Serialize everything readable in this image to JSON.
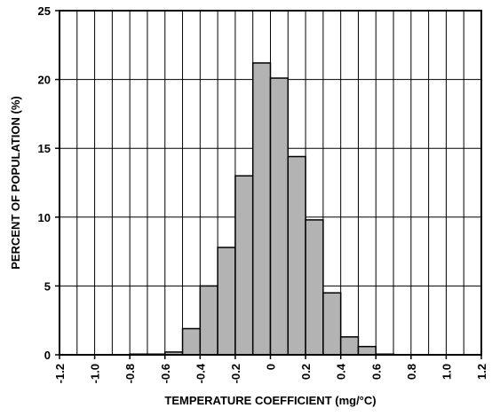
{
  "chart_data": {
    "type": "bar",
    "title": "",
    "xlabel": "TEMPERATURE COEFFICIENT (mg/°C)",
    "ylabel": "PERCENT OF POPULATION (%)",
    "xlim": [
      -1.2,
      1.2
    ],
    "ylim": [
      0,
      25
    ],
    "x_ticks": [
      -1.2,
      -1.0,
      -0.8,
      -0.6,
      -0.4,
      -0.2,
      0,
      0.2,
      0.4,
      0.6,
      0.8,
      1.0,
      1.2
    ],
    "x_tick_labels": [
      "-1.2",
      "-1.0",
      "-0.8",
      "-0.6",
      "-0.4",
      "-0.2",
      "0",
      "0.2",
      "0.4",
      "0.6",
      "0.8",
      "1.0",
      "1.2"
    ],
    "y_ticks": [
      0,
      5,
      10,
      15,
      20,
      25
    ],
    "y_tick_labels": [
      "0",
      "5",
      "10",
      "15",
      "20",
      "25"
    ],
    "bin_width": 0.1,
    "bins": [
      {
        "x": [
          -0.8,
          -0.7
        ],
        "value": 0.05
      },
      {
        "x": [
          -0.7,
          -0.6
        ],
        "value": 0.05
      },
      {
        "x": [
          -0.6,
          -0.5
        ],
        "value": 0.2
      },
      {
        "x": [
          -0.5,
          -0.4
        ],
        "value": 1.9
      },
      {
        "x": [
          -0.4,
          -0.3
        ],
        "value": 5.0
      },
      {
        "x": [
          -0.3,
          -0.2
        ],
        "value": 7.8
      },
      {
        "x": [
          -0.2,
          -0.1
        ],
        "value": 13.0
      },
      {
        "x": [
          -0.1,
          0.0
        ],
        "value": 21.2
      },
      {
        "x": [
          0.0,
          0.1
        ],
        "value": 20.1
      },
      {
        "x": [
          0.1,
          0.2
        ],
        "value": 14.4
      },
      {
        "x": [
          0.2,
          0.3
        ],
        "value": 9.8
      },
      {
        "x": [
          0.3,
          0.4
        ],
        "value": 4.5
      },
      {
        "x": [
          0.4,
          0.5
        ],
        "value": 1.3
      },
      {
        "x": [
          0.5,
          0.6
        ],
        "value": 0.6
      },
      {
        "x": [
          0.6,
          0.7
        ],
        "value": 0.05
      }
    ],
    "grid": true,
    "bar_fill": "#b3b3b3",
    "bar_stroke": "#000000"
  }
}
